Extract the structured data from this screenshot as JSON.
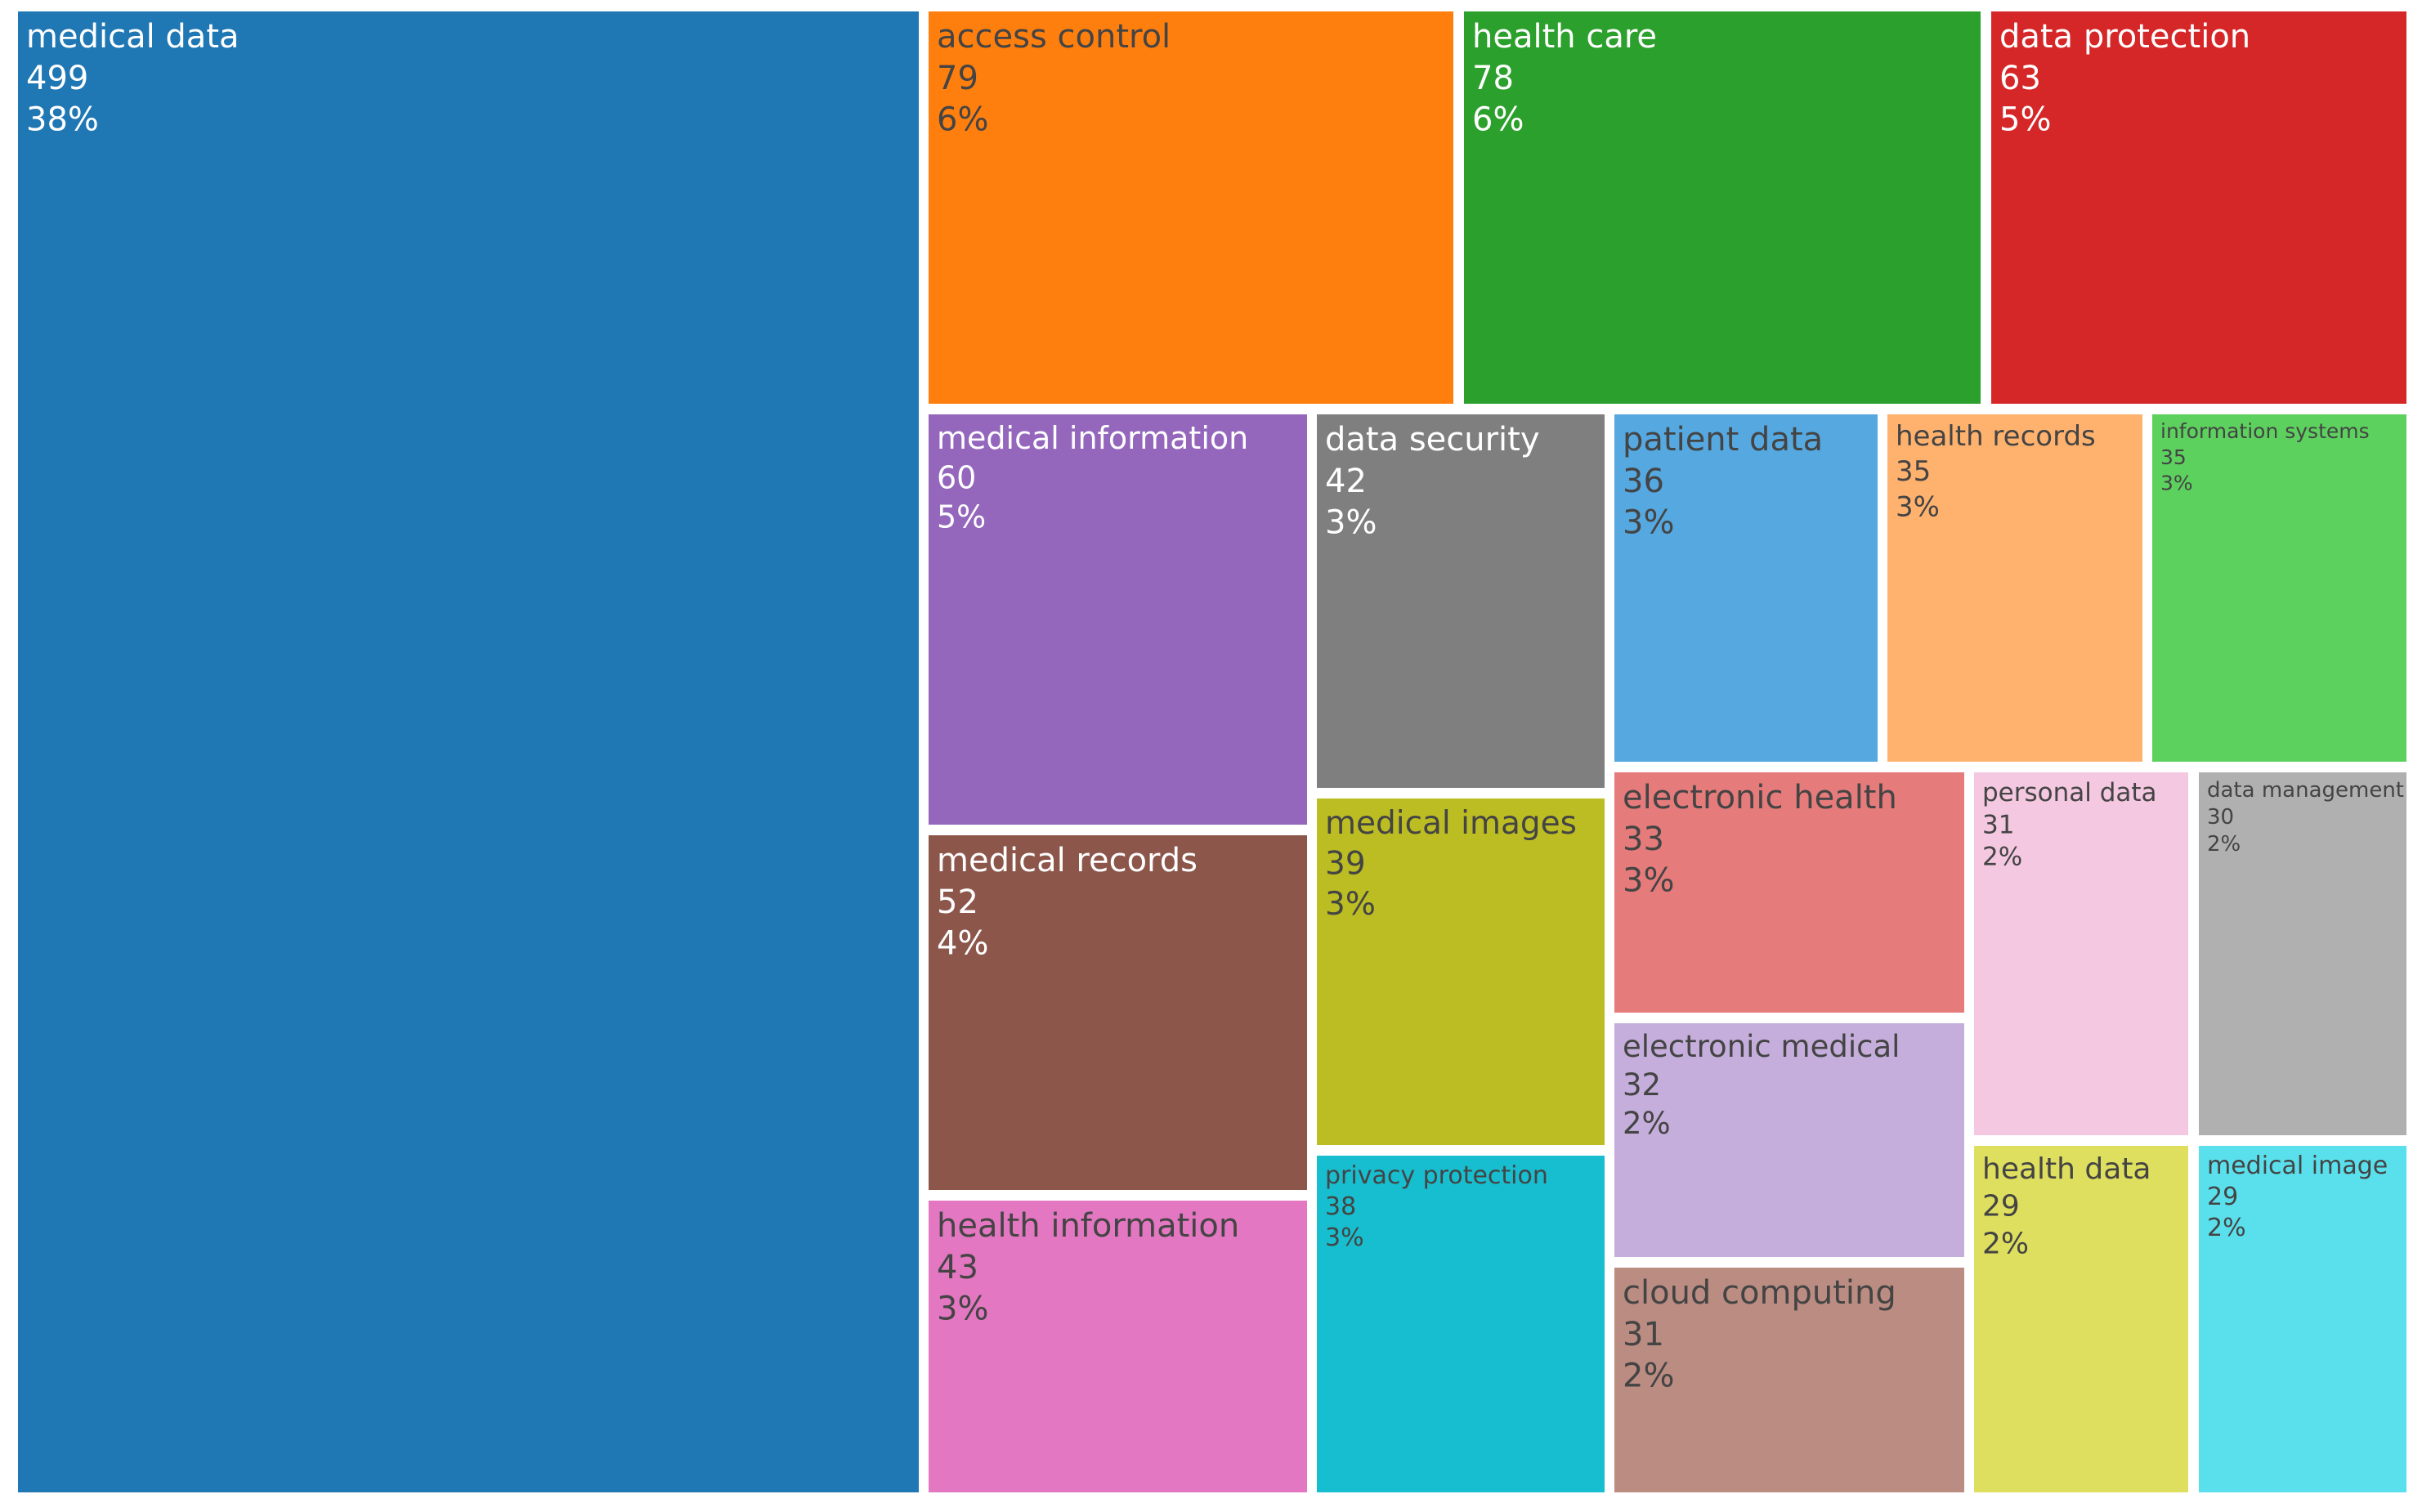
{
  "chart_data": {
    "type": "treemap",
    "items": [
      {
        "label": "medical data",
        "value": 499,
        "percent": "38%",
        "color": "#1f77b4",
        "text_color": "#ffffff"
      },
      {
        "label": "access control",
        "value": 79,
        "percent": "6%",
        "color": "#ff7f0e",
        "text_color": "#444444"
      },
      {
        "label": "health care",
        "value": 78,
        "percent": "6%",
        "color": "#2ca02c",
        "text_color": "#ffffff"
      },
      {
        "label": "data protection",
        "value": 63,
        "percent": "5%",
        "color": "#d62728",
        "text_color": "#ffffff"
      },
      {
        "label": "medical information",
        "value": 60,
        "percent": "5%",
        "color": "#9467bd",
        "text_color": "#ffffff"
      },
      {
        "label": "data security",
        "value": 42,
        "percent": "3%",
        "color": "#7f7f7f",
        "text_color": "#ffffff"
      },
      {
        "label": "patient data",
        "value": 36,
        "percent": "3%",
        "color": "#56a8e0",
        "text_color": "#444444"
      },
      {
        "label": "health records",
        "value": 35,
        "percent": "3%",
        "color": "#ffb26e",
        "text_color": "#444444"
      },
      {
        "label": "information systems",
        "value": 35,
        "percent": "3%",
        "color": "#5cd15e",
        "text_color": "#444444"
      },
      {
        "label": "medical records",
        "value": 52,
        "percent": "4%",
        "color": "#8c564b",
        "text_color": "#ffffff"
      },
      {
        "label": "medical images",
        "value": 39,
        "percent": "3%",
        "color": "#bcbd22",
        "text_color": "#444444"
      },
      {
        "label": "electronic health",
        "value": 33,
        "percent": "3%",
        "color": "#e57b7b",
        "text_color": "#444444"
      },
      {
        "label": "personal data",
        "value": 31,
        "percent": "2%",
        "color": "#f4c8e1",
        "text_color": "#444444"
      },
      {
        "label": "data management",
        "value": 30,
        "percent": "2%",
        "color": "#b0b0b0",
        "text_color": "#444444"
      },
      {
        "label": "health information",
        "value": 43,
        "percent": "3%",
        "color": "#e377c2",
        "text_color": "#444444"
      },
      {
        "label": "privacy protection",
        "value": 38,
        "percent": "3%",
        "color": "#17becf",
        "text_color": "#444444"
      },
      {
        "label": "electronic medical",
        "value": 32,
        "percent": "2%",
        "color": "#c5aedb",
        "text_color": "#444444"
      },
      {
        "label": "cloud computing",
        "value": 31,
        "percent": "2%",
        "color": "#bb8c82",
        "text_color": "#444444"
      },
      {
        "label": "health data",
        "value": 29,
        "percent": "2%",
        "color": "#dede5f",
        "text_color": "#444444"
      },
      {
        "label": "medical image",
        "value": 29,
        "percent": "2%",
        "color": "#5ae0ec",
        "text_color": "#444444"
      }
    ]
  }
}
